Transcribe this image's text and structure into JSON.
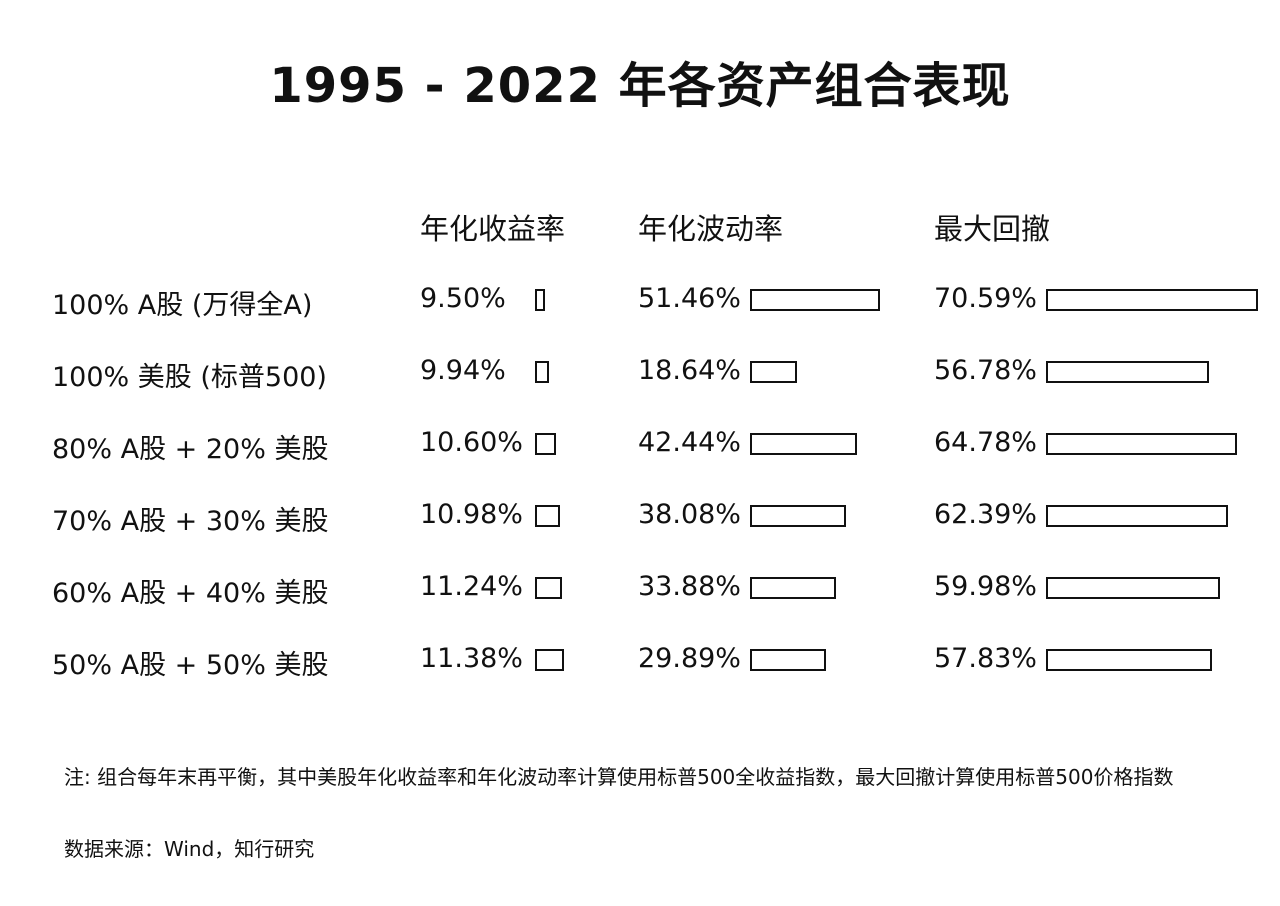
{
  "chart_data": {
    "type": "table",
    "title": "1995 - 2022 年各资产组合表现",
    "columns": [
      "年化收益率",
      "年化波动率",
      "最大回撤"
    ],
    "rows": [
      {
        "label": "100% A股 (万得全A)",
        "return": "9.50%",
        "return_value": 9.5,
        "volatility": "51.46%",
        "volatility_value": 51.46,
        "drawdown": "70.59%",
        "drawdown_value": 70.59
      },
      {
        "label": "100% 美股 (标普500)",
        "return": "9.94%",
        "return_value": 9.94,
        "volatility": "18.64%",
        "volatility_value": 18.64,
        "drawdown": "56.78%",
        "drawdown_value": 56.78
      },
      {
        "label": "80% A股 + 20% 美股",
        "return": "10.60%",
        "return_value": 10.6,
        "volatility": "42.44%",
        "volatility_value": 42.44,
        "drawdown": "64.78%",
        "drawdown_value": 64.78
      },
      {
        "label": "70% A股 + 30% 美股",
        "return": "10.98%",
        "return_value": 10.98,
        "volatility": "38.08%",
        "volatility_value": 38.08,
        "drawdown": "62.39%",
        "drawdown_value": 62.39
      },
      {
        "label": "60% A股 + 40% 美股",
        "return": "11.24%",
        "return_value": 11.24,
        "volatility": "33.88%",
        "volatility_value": 33.88,
        "drawdown": "59.98%",
        "drawdown_value": 59.98
      },
      {
        "label": "50% A股 + 50% 美股",
        "return": "11.38%",
        "return_value": 11.38,
        "volatility": "29.89%",
        "volatility_value": 29.89,
        "drawdown": "57.83%",
        "drawdown_value": 57.83
      }
    ]
  },
  "notes": {
    "note": "注: 组合每年末再平衡，其中美股年化收益率和年化波动率计算使用标普500全收益指数，最大回撤计算使用标普500价格指数",
    "source": "数据来源：Wind，知行研究"
  }
}
